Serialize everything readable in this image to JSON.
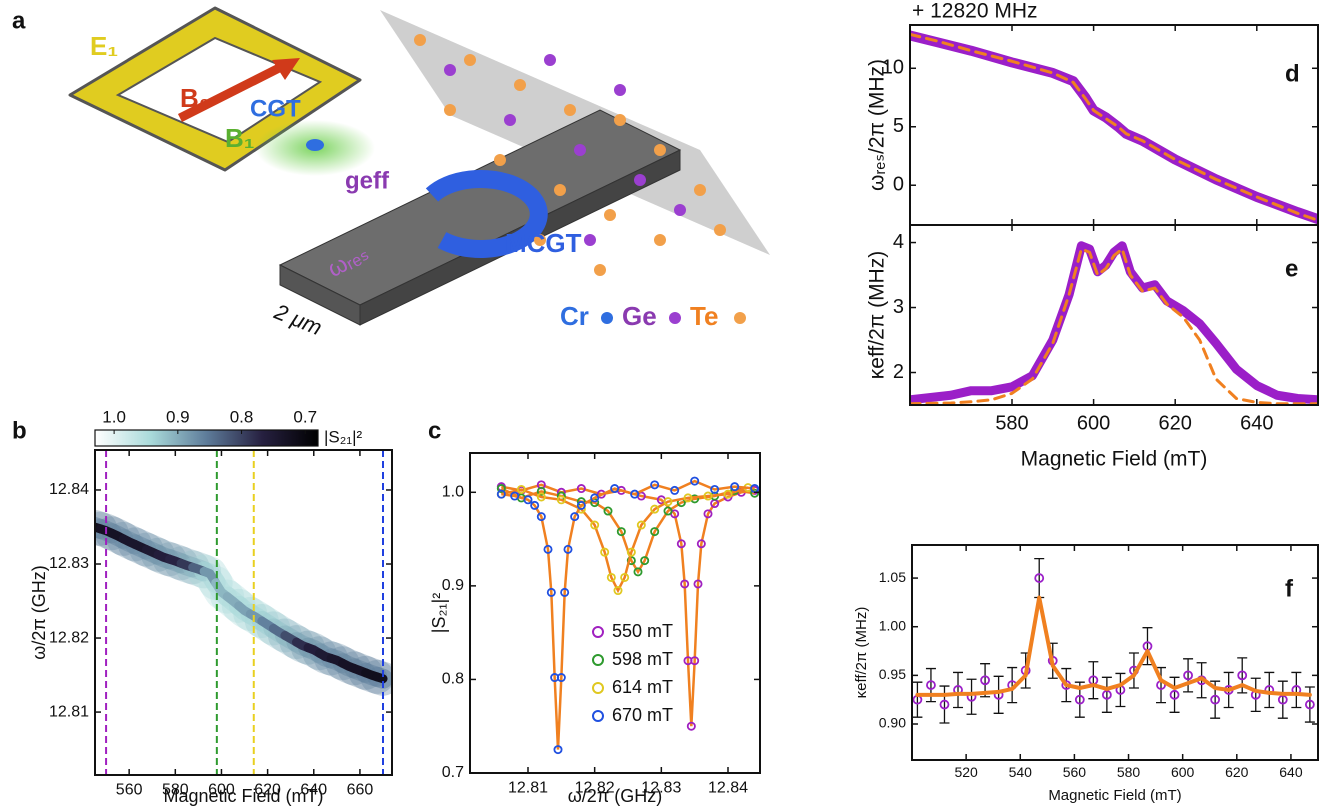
{
  "illustration": {
    "panel": "a",
    "labels": [
      "E₁",
      "B₀",
      "CGT",
      "B₁",
      "geff",
      "ωᵣₑₛ",
      "2 μm",
      "MCGT",
      "Cr",
      "Ge",
      "Te"
    ]
  },
  "chart_data": [
    {
      "type": "heatmap",
      "panel": "b",
      "xlabel": "Magnetic Field (mT)",
      "ylabel": "ω/2π (GHz)",
      "colorbar_label": "|S₂₁|²",
      "clim": [
        1.03,
        0.68
      ],
      "cticks": [
        {
          "value": 1,
          "label": "1.0"
        },
        0.9,
        0.8,
        0.7
      ],
      "colormap": [
        "#ffffff",
        "#a9dada",
        "#5e7c9a",
        "#262040",
        "#000000"
      ],
      "xlim": [
        545.2,
        673.9
      ],
      "xticks": [
        560,
        580,
        600,
        620,
        640,
        660
      ],
      "ylim": [
        12.8015,
        12.8454
      ],
      "yticks": [
        12.81,
        12.82,
        12.83,
        12.84
      ],
      "x": [
        545,
        550,
        555,
        560,
        565,
        570,
        575,
        580,
        585,
        590,
        595,
        600,
        605,
        610,
        615,
        620,
        625,
        630,
        635,
        640,
        645,
        650,
        655,
        660,
        665,
        670
      ],
      "values": [
        12.835,
        12.8345,
        12.8338,
        12.833,
        12.8323,
        12.8316,
        12.8309,
        12.8304,
        12.8298,
        12.8293,
        12.8287,
        12.8262,
        12.825,
        12.8237,
        12.8228,
        12.8218,
        12.8208,
        12.8199,
        12.819,
        12.8184,
        12.8175,
        12.817,
        12.8162,
        12.8156,
        12.815,
        12.8145
      ],
      "depth": [
        0.72,
        0.73,
        0.73,
        0.74,
        0.74,
        0.75,
        0.76,
        0.77,
        0.79,
        0.83,
        0.88,
        0.91,
        0.9,
        0.89,
        0.88,
        0.86,
        0.84,
        0.81,
        0.78,
        0.76,
        0.75,
        0.74,
        0.73,
        0.73,
        0.72,
        0.72
      ],
      "markers": [
        {
          "value": 550,
          "color": "#a020c0"
        },
        {
          "value": 598,
          "color": "#2e9a2e"
        },
        {
          "value": 614,
          "color": "#e8d020"
        },
        {
          "value": 670,
          "color": "#2040e0"
        }
      ]
    },
    {
      "type": "line",
      "panel": "c",
      "xlabel": "ω/2π (GHz)",
      "ylabel": "|S₂₁|²",
      "fit_color": "#f08020",
      "legend": "lower center",
      "xlim": [
        12.8013,
        12.8448
      ],
      "xticks": [
        12.81,
        12.82,
        12.83,
        12.84
      ],
      "ylim": [
        0.7,
        1.042
      ],
      "yticks": [
        0.7,
        0.8,
        0.9,
        {
          "value": 1,
          "label": "1.0"
        }
      ],
      "series": [
        {
          "name": "550 mT",
          "color": "#a020c0",
          "marker": "circle",
          "x": [
            12.806,
            12.809,
            12.812,
            12.815,
            12.818,
            12.821,
            12.824,
            12.827,
            12.83,
            12.832,
            12.833,
            12.8335,
            12.834,
            12.8345,
            12.835,
            12.8355,
            12.836,
            12.837,
            12.838,
            12.84,
            12.842,
            12.844
          ],
          "values": [
            1.006,
            1.002,
            1.008,
            1.0,
            1.004,
            0.998,
            1.002,
            0.996,
            0.992,
            0.977,
            0.945,
            0.902,
            0.82,
            0.75,
            0.82,
            0.902,
            0.945,
            0.977,
            0.988,
            0.995,
            1.0,
            1.002
          ]
        },
        {
          "name": "598 mT",
          "color": "#2e9a2e",
          "marker": "circle",
          "x": [
            12.806,
            12.809,
            12.812,
            12.815,
            12.818,
            12.82,
            12.822,
            12.824,
            12.8255,
            12.8265,
            12.8275,
            12.829,
            12.831,
            12.833,
            12.835,
            12.838,
            12.841,
            12.844
          ],
          "values": [
            1.004,
            0.994,
            1.001,
            0.996,
            0.99,
            0.989,
            0.98,
            0.958,
            0.927,
            0.915,
            0.927,
            0.958,
            0.98,
            0.989,
            0.993,
            0.996,
            1.002,
            0.999
          ]
        },
        {
          "name": "614 mT",
          "color": "#e0c820",
          "marker": "circle",
          "x": [
            12.806,
            12.809,
            12.812,
            12.815,
            12.818,
            12.82,
            12.8215,
            12.8225,
            12.8235,
            12.8245,
            12.8255,
            12.827,
            12.829,
            12.831,
            12.834,
            12.837,
            12.84,
            12.843
          ],
          "values": [
            0.998,
            1.003,
            0.995,
            0.992,
            0.982,
            0.965,
            0.936,
            0.909,
            0.895,
            0.909,
            0.936,
            0.965,
            0.982,
            0.99,
            0.994,
            0.996,
            0.998,
            1.005
          ]
        },
        {
          "name": "670 mT",
          "color": "#2050e0",
          "marker": "circle",
          "x": [
            12.806,
            12.808,
            12.81,
            12.811,
            12.812,
            12.813,
            12.8135,
            12.814,
            12.8145,
            12.815,
            12.8155,
            12.816,
            12.817,
            12.818,
            12.82,
            12.823,
            12.826,
            12.829,
            12.832,
            12.835,
            12.838,
            12.841,
            12.844
          ],
          "values": [
            0.998,
            0.996,
            0.992,
            0.986,
            0.974,
            0.939,
            0.893,
            0.802,
            0.725,
            0.802,
            0.893,
            0.939,
            0.974,
            0.986,
            0.994,
            1.004,
            0.998,
            1.008,
            1.002,
            1.012,
            1.003,
            1.006,
            1.004
          ]
        }
      ]
    },
    {
      "type": "line",
      "panel": "d",
      "ylabel": "ωᵣₑₛ/2π (MHz)",
      "offset_text": "+ 12820 MHz",
      "xtick_labels": false,
      "xlim": [
        555,
        655
      ],
      "xticks": [
        580,
        600,
        620,
        640
      ],
      "ylim": [
        -3.4,
        13.7
      ],
      "yticks": [
        0,
        5,
        10
      ],
      "x": [
        555,
        562,
        570,
        580,
        590,
        595,
        598,
        600,
        603,
        606,
        608,
        612,
        616,
        620,
        630,
        640,
        650,
        655
      ],
      "series": [
        {
          "color": "#9b1fc8",
          "width": 10,
          "values": [
            12.8,
            12.2,
            11.5,
            10.5,
            9.6,
            8.9,
            7.5,
            6.4,
            5.8,
            5.0,
            4.4,
            3.8,
            3.0,
            2.2,
            0.5,
            -1.0,
            -2.3,
            -2.9
          ]
        },
        {
          "color": "#f08020",
          "width": 3,
          "dash": true,
          "values": [
            12.9,
            12.3,
            11.5,
            10.6,
            9.6,
            8.8,
            7.4,
            6.4,
            5.7,
            5.0,
            4.4,
            3.8,
            3.0,
            2.2,
            0.5,
            -1.0,
            -2.4,
            -3.0
          ]
        }
      ]
    },
    {
      "type": "line",
      "panel": "e",
      "xlabel": "Magnetic Field (mT)",
      "ylabel": "κeff/2π (MHz)",
      "xlim": [
        555,
        655
      ],
      "xticks": [
        580,
        600,
        620,
        640
      ],
      "ylim": [
        1.5,
        4.27
      ],
      "yticks": [
        2,
        3,
        4
      ],
      "x": [
        555,
        565,
        570,
        575,
        580,
        585,
        590,
        594,
        597,
        599,
        601,
        603,
        605,
        607,
        609,
        612,
        615,
        618,
        622,
        626,
        630,
        635,
        640,
        645,
        650,
        655
      ],
      "series": [
        {
          "color": "#9b1fc8",
          "width": 9,
          "values": [
            1.58,
            1.65,
            1.72,
            1.72,
            1.78,
            1.95,
            2.5,
            3.2,
            3.95,
            3.9,
            3.55,
            3.65,
            3.85,
            3.95,
            3.55,
            3.3,
            3.35,
            3.1,
            2.95,
            2.75,
            2.45,
            2.05,
            1.8,
            1.65,
            1.6,
            1.58
          ]
        },
        {
          "color": "#f08020",
          "width": 3,
          "dash": true,
          "values": [
            1.52,
            1.53,
            1.55,
            1.58,
            1.68,
            1.9,
            2.45,
            3.2,
            3.9,
            3.85,
            3.5,
            3.6,
            3.8,
            3.9,
            3.5,
            3.25,
            3.3,
            3.05,
            2.85,
            2.5,
            1.9,
            1.6,
            1.54,
            1.52,
            1.52,
            1.52
          ]
        }
      ]
    },
    {
      "type": "errorbar",
      "panel": "f",
      "xlabel": "Magnetic Field (mT)",
      "ylabel": "κeff/2π (MHz)",
      "xlim": [
        500,
        650
      ],
      "xticks": [
        520,
        540,
        560,
        580,
        600,
        620,
        640
      ],
      "ylim": [
        0.863,
        1.084
      ],
      "yticks": [
        {
          "value": 0.9,
          "label": "0.90"
        },
        0.95,
        {
          "value": 1,
          "label": "1.00"
        },
        1.05
      ],
      "x": [
        502,
        507,
        512,
        517,
        522,
        527,
        532,
        537,
        542,
        547,
        552,
        557,
        562,
        567,
        572,
        577,
        582,
        587,
        592,
        597,
        602,
        607,
        612,
        617,
        622,
        627,
        632,
        637,
        642,
        647
      ],
      "series": [
        {
          "color": "#9b1fc8",
          "marker": "circle",
          "values": [
            0.925,
            0.94,
            0.92,
            0.935,
            0.928,
            0.945,
            0.93,
            0.94,
            0.955,
            1.05,
            0.965,
            0.94,
            0.925,
            0.945,
            0.93,
            0.935,
            0.955,
            0.98,
            0.94,
            0.93,
            0.95,
            0.945,
            0.925,
            0.935,
            0.95,
            0.93,
            0.935,
            0.925,
            0.935,
            0.92
          ],
          "errors": [
            0.018,
            0.017,
            0.019,
            0.018,
            0.018,
            0.017,
            0.019,
            0.018,
            0.018,
            0.02,
            0.018,
            0.017,
            0.018,
            0.019,
            0.018,
            0.017,
            0.018,
            0.019,
            0.018,
            0.018,
            0.017,
            0.018,
            0.019,
            0.018,
            0.018,
            0.017,
            0.018,
            0.019,
            0.018,
            0.018
          ]
        },
        {
          "color": "#f08020",
          "width": 4,
          "values": [
            0.93,
            0.93,
            0.93,
            0.931,
            0.931,
            0.932,
            0.933,
            0.936,
            0.95,
            1.03,
            0.96,
            0.94,
            0.937,
            0.94,
            0.936,
            0.94,
            0.95,
            0.975,
            0.945,
            0.937,
            0.942,
            0.947,
            0.937,
            0.935,
            0.94,
            0.934,
            0.932,
            0.931,
            0.931,
            0.93
          ]
        }
      ]
    }
  ]
}
